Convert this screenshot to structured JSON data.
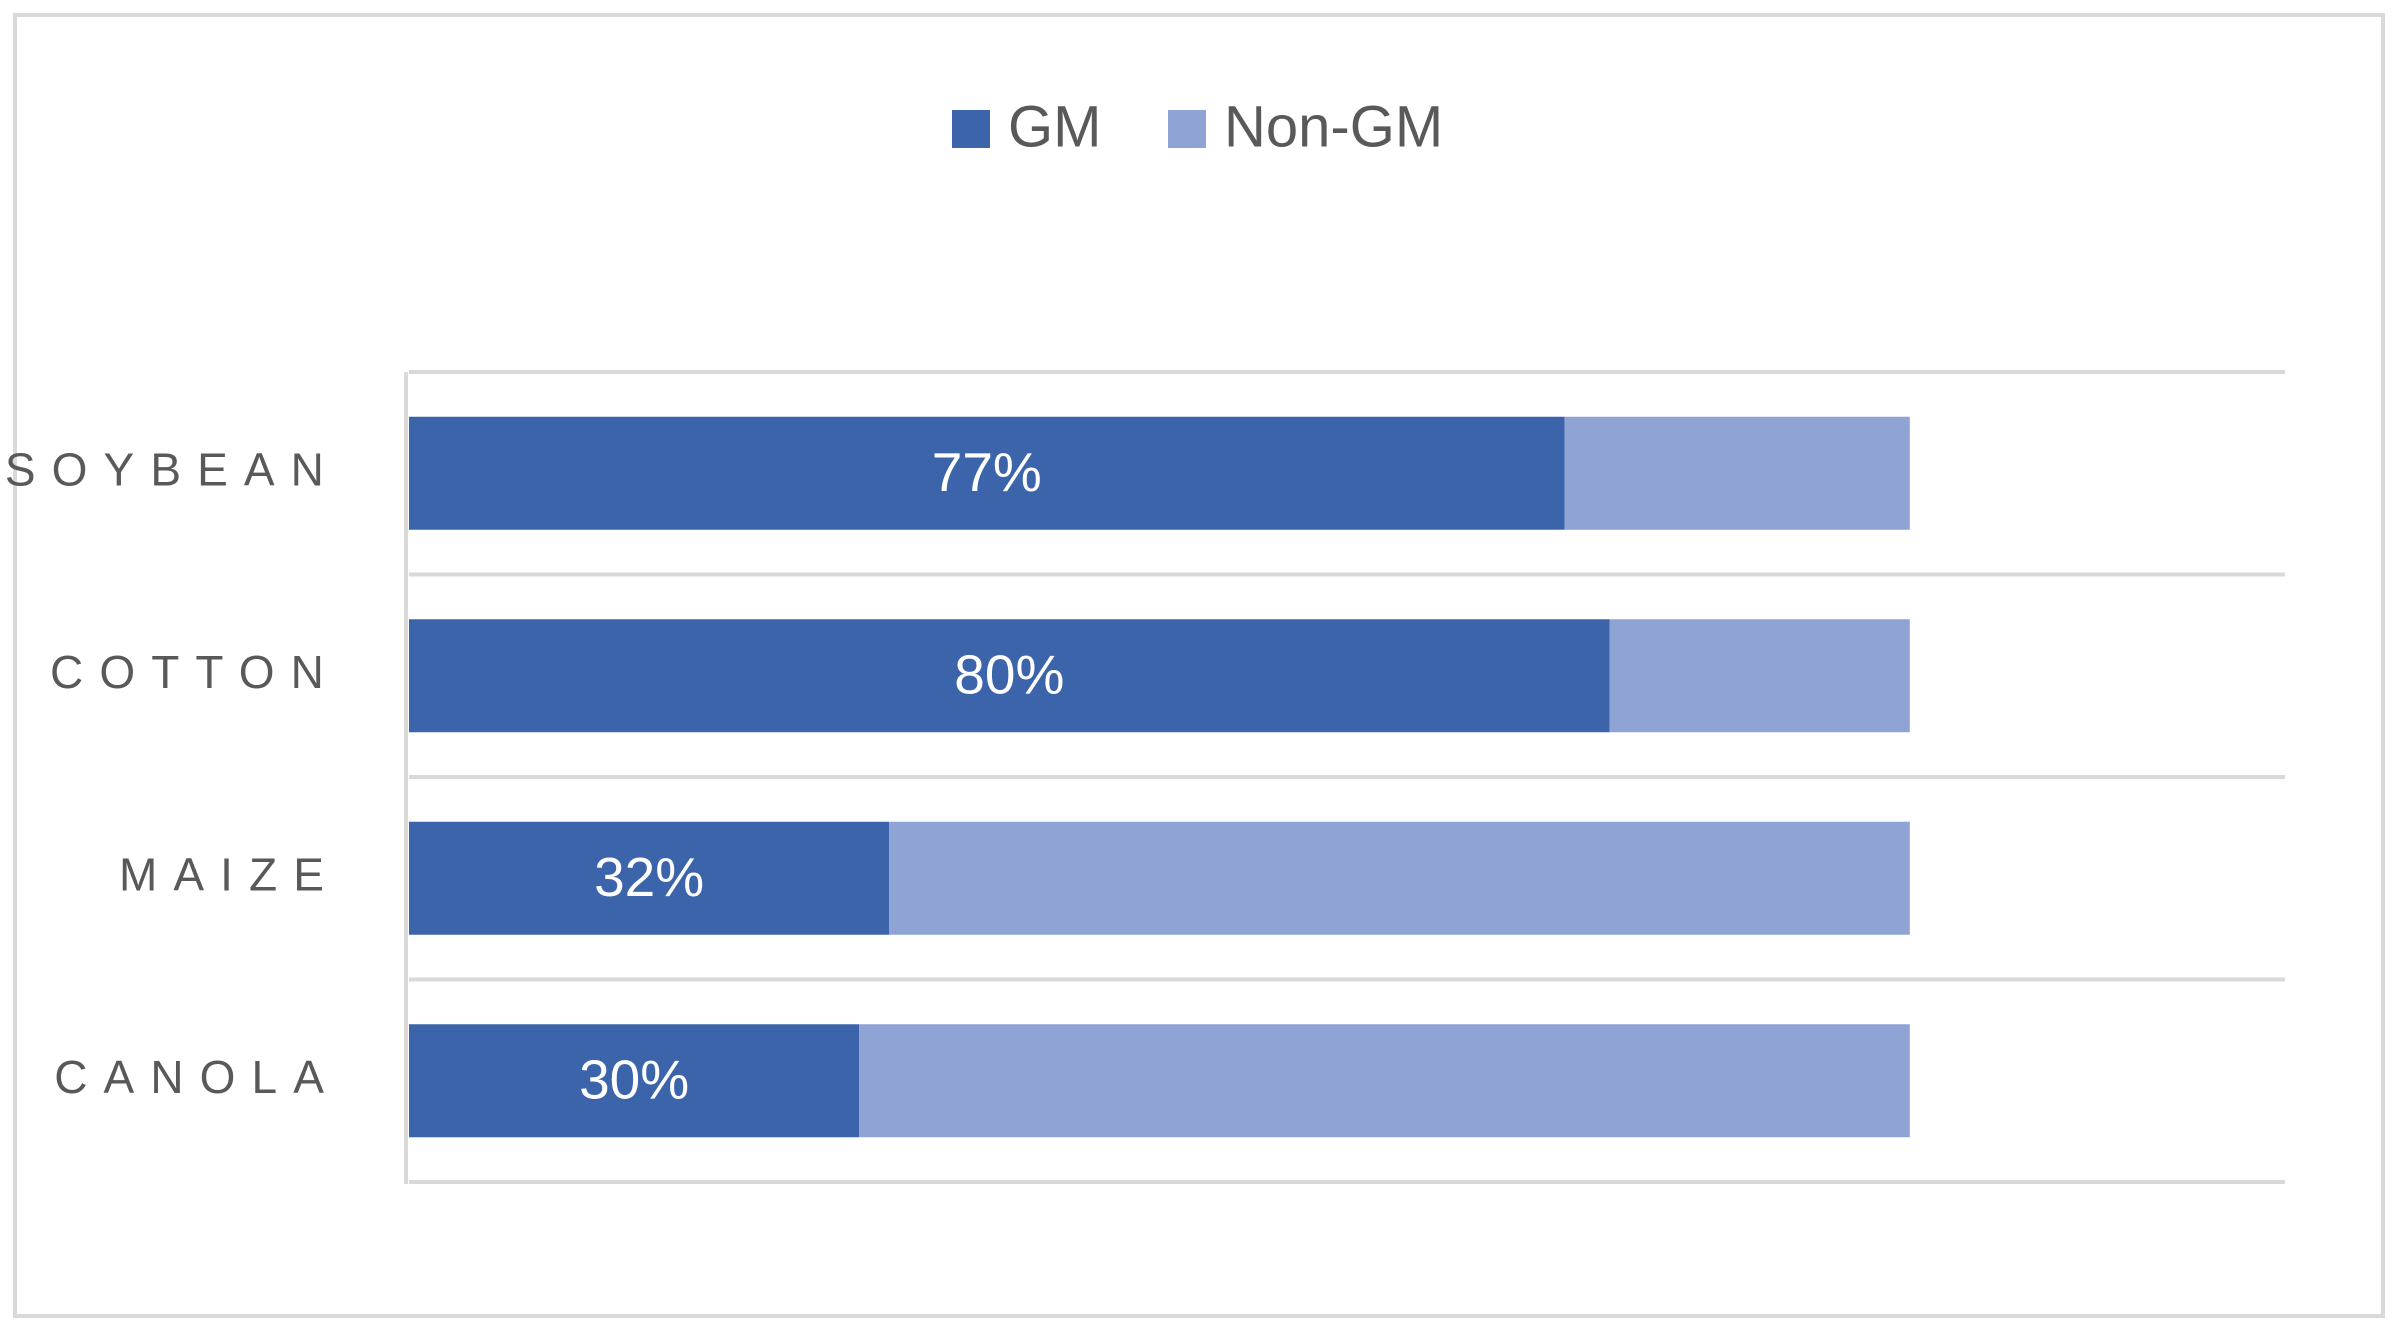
{
  "chart_data": {
    "type": "stacked-barh",
    "categories": [
      "SOYBEAN",
      "COTTON",
      "MAIZE",
      "CANOLA"
    ],
    "series": [
      {
        "name": "GM",
        "color": "#3c64ab",
        "values": [
          77,
          80,
          32,
          30
        ],
        "value_labels": [
          "77%",
          "80%",
          "32%",
          "30%"
        ]
      },
      {
        "name": "Non-GM",
        "color": "#8fa3d4",
        "values": [
          23,
          20,
          68,
          70
        ]
      }
    ],
    "xlim": [
      0,
      125
    ],
    "legend": "top"
  }
}
